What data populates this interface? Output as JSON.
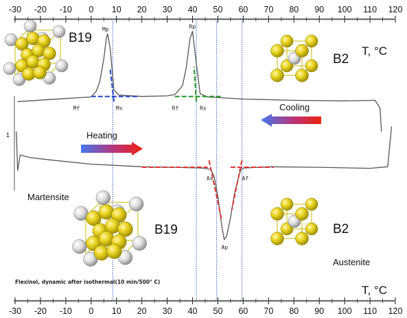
{
  "chart_data": {
    "type": "line",
    "xlabel_top": "T, °C",
    "xlabel_bottom": "T, °C",
    "xlim": [
      -30,
      120
    ],
    "xticks": [
      -30,
      -20,
      -10,
      0,
      10,
      20,
      30,
      40,
      50,
      60,
      70,
      80,
      90,
      100,
      110,
      120
    ],
    "y_tick_label": "1",
    "caption": "Flexinol, dynamic after isothermal(10 min/500° C)",
    "series": [
      {
        "name": "Cooling",
        "x": [
          -29,
          -10,
          0,
          2,
          3.5,
          5,
          6,
          6.5,
          7.5,
          9,
          11,
          20,
          30,
          33,
          36,
          37.5,
          39,
          40,
          41.5,
          43,
          46,
          60,
          80,
          100,
          112,
          114,
          114.5
        ],
        "y": [
          0.715,
          0.727,
          0.733,
          0.755,
          0.795,
          0.88,
          0.96,
          0.975,
          0.92,
          0.76,
          0.74,
          0.735,
          0.737,
          0.742,
          0.775,
          0.845,
          0.955,
          0.985,
          0.86,
          0.745,
          0.733,
          0.725,
          0.72,
          0.718,
          0.72,
          0.69,
          0.6
        ]
      },
      {
        "name": "Heating",
        "x": [
          -29.5,
          -29,
          -28,
          -24,
          -15,
          0,
          20,
          35,
          44,
          47,
          48.5,
          50,
          51.5,
          52.5,
          53.5,
          55,
          56.5,
          58,
          59,
          60,
          70,
          90,
          110,
          117,
          118.5
        ],
        "y": [
          0.6,
          0.45,
          0.51,
          0.5,
          0.49,
          0.475,
          0.465,
          0.462,
          0.46,
          0.455,
          0.43,
          0.35,
          0.24,
          0.185,
          0.2,
          0.27,
          0.36,
          0.42,
          0.452,
          0.46,
          0.465,
          0.463,
          0.459,
          0.465,
          0.62
        ]
      }
    ],
    "ylim": [
      0,
      1
    ],
    "transformation_points": [
      {
        "label": "Mp",
        "x": 6,
        "y": 0.975
      },
      {
        "label": "Rp",
        "x": 40,
        "y": 0.985
      },
      {
        "label": "Ap",
        "x": 53,
        "y": 0.185
      },
      {
        "label": "Mf",
        "x": -6,
        "y": 0.72
      },
      {
        "label": "Ms",
        "x": 8.7,
        "y": 0.72
      },
      {
        "label": "Rf",
        "x": 33,
        "y": 0.72
      },
      {
        "label": "Rs",
        "x": 41.5,
        "y": 0.72
      },
      {
        "label": "As",
        "x": 48.2,
        "y": 0.447
      },
      {
        "label": "Af",
        "x": 58.4,
        "y": 0.447
      }
    ],
    "tangent_lines": [
      {
        "color": "#2244cc",
        "x1": 0,
        "y1": 0.735,
        "x2": 19,
        "y2": 0.735
      },
      {
        "color": "#2244cc",
        "x1": 9,
        "y1": 0.715,
        "x2": 7.5,
        "y2": 0.84
      },
      {
        "color": "#229922",
        "x1": 33,
        "y1": 0.735,
        "x2": 52,
        "y2": 0.735
      },
      {
        "color": "#229922",
        "x1": 41.5,
        "y1": 0.715,
        "x2": 40.6,
        "y2": 0.85
      },
      {
        "color": "#dd3333",
        "x1": 20,
        "y1": 0.463,
        "x2": 46,
        "y2": 0.463
      },
      {
        "color": "#dd3333",
        "x1": 46.5,
        "y1": 0.49,
        "x2": 51.5,
        "y2": 0.26
      },
      {
        "color": "#dd3333",
        "x1": 55,
        "y1": 0.463,
        "x2": 72,
        "y2": 0.463
      },
      {
        "color": "#dd3333",
        "x1": 59.5,
        "y1": 0.49,
        "x2": 55.5,
        "y2": 0.3
      }
    ],
    "reference_lines_x": [
      8.5,
      41.5,
      49.5,
      59.5
    ],
    "grid": false
  },
  "annotations": {
    "phase_b19_top": "B19",
    "phase_b2_top": "B2",
    "phase_b19_bottom": "B19",
    "phase_b2_bottom": "B2",
    "martensite": "Martensite",
    "austenite": "Austenite",
    "cooling": "Cooling",
    "heating": "Heating"
  },
  "colors": {
    "curve": "#555555",
    "atom_gold": "#e8d21f",
    "atom_white": "#e8e8e8",
    "ref_line": "#5577cc",
    "arrow_blue": "#4477ee",
    "arrow_red": "#ee2211"
  }
}
